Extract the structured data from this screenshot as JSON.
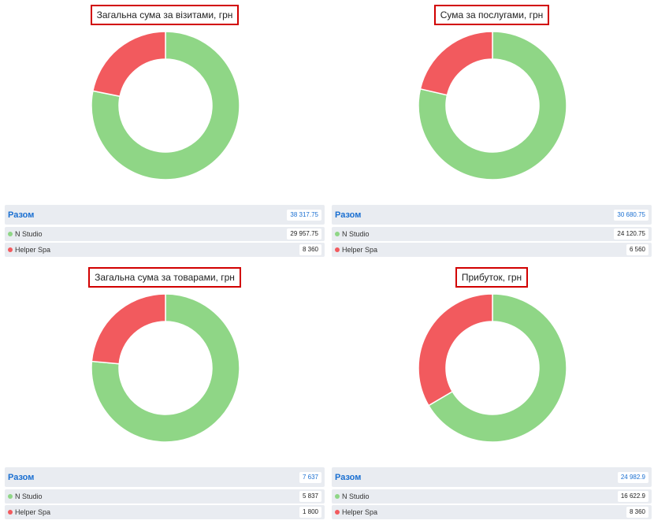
{
  "colors": {
    "n_studio": "#8fd686",
    "helper_spa": "#f25a5e",
    "total_label": "#1a6fd1"
  },
  "total_label": "Разом",
  "chart_data": [
    {
      "type": "pie",
      "title": "Загальна сума за візитами, грн",
      "total": "38 317.75",
      "series": [
        {
          "name": "N Studio",
          "value": 29957.75,
          "display": "29 957.75"
        },
        {
          "name": "Helper Spa",
          "value": 8360,
          "display": "8 360"
        }
      ]
    },
    {
      "type": "pie",
      "title": "Сума за послугами, грн",
      "total": "30 680.75",
      "series": [
        {
          "name": "N Studio",
          "value": 24120.75,
          "display": "24 120.75"
        },
        {
          "name": "Helper Spa",
          "value": 6560,
          "display": "6 560"
        }
      ]
    },
    {
      "type": "pie",
      "title": "Загальна сума за товарами, грн",
      "total": "7 637",
      "series": [
        {
          "name": "N Studio",
          "value": 5837,
          "display": "5 837"
        },
        {
          "name": "Helper Spa",
          "value": 1800,
          "display": "1 800"
        }
      ]
    },
    {
      "type": "pie",
      "title": "Прибуток, грн",
      "total": "24 982.9",
      "series": [
        {
          "name": "N Studio",
          "value": 16622.9,
          "display": "16 622.9"
        },
        {
          "name": "Helper Spa",
          "value": 8360,
          "display": "8 360"
        }
      ]
    }
  ]
}
